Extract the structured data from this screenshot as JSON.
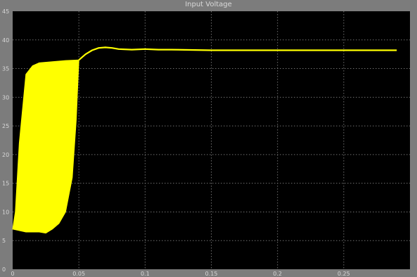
{
  "window": {
    "title": "Input Voltage"
  },
  "colors": {
    "frame": "#7c7c7c",
    "plot_background": "#000000",
    "grid": "#6e6e6e",
    "trace": "#ffff00",
    "axis_text": "#d8d8d8"
  },
  "chart_data": {
    "type": "line",
    "title": "Input Voltage",
    "xlabel": "",
    "ylabel": "",
    "xlim": [
      0,
      0.3
    ],
    "ylim": [
      0,
      45
    ],
    "x_ticks": [
      "0",
      "0.05",
      "0.1",
      "0.15",
      "0.2",
      "0.25"
    ],
    "y_ticks": [
      "0",
      "5",
      "10",
      "15",
      "20",
      "25",
      "30",
      "35",
      "40",
      "45"
    ],
    "grid": true,
    "series": [
      {
        "upper_envelope": {
          "x": [
            0,
            0.002,
            0.005,
            0.01,
            0.015,
            0.02,
            0.03,
            0.04,
            0.05
          ],
          "y": [
            7,
            10,
            22,
            34,
            35.5,
            36,
            36.2,
            36.4,
            36.5
          ]
        },
        "lower_envelope": {
          "x": [
            0,
            0.01,
            0.02,
            0.025,
            0.03,
            0.035,
            0.04,
            0.045,
            0.048,
            0.05
          ],
          "y": [
            7,
            6.5,
            6.5,
            6.3,
            7,
            8,
            10,
            16,
            26,
            36.5
          ]
        },
        "x": [
          0.05,
          0.055,
          0.06,
          0.065,
          0.07,
          0.075,
          0.08,
          0.09,
          0.1,
          0.11,
          0.12,
          0.15,
          0.2,
          0.25,
          0.29
        ],
        "y": [
          36.5,
          37.5,
          38.2,
          38.6,
          38.7,
          38.6,
          38.4,
          38.3,
          38.4,
          38.3,
          38.3,
          38.2,
          38.2,
          38.2,
          38.2
        ]
      }
    ]
  }
}
